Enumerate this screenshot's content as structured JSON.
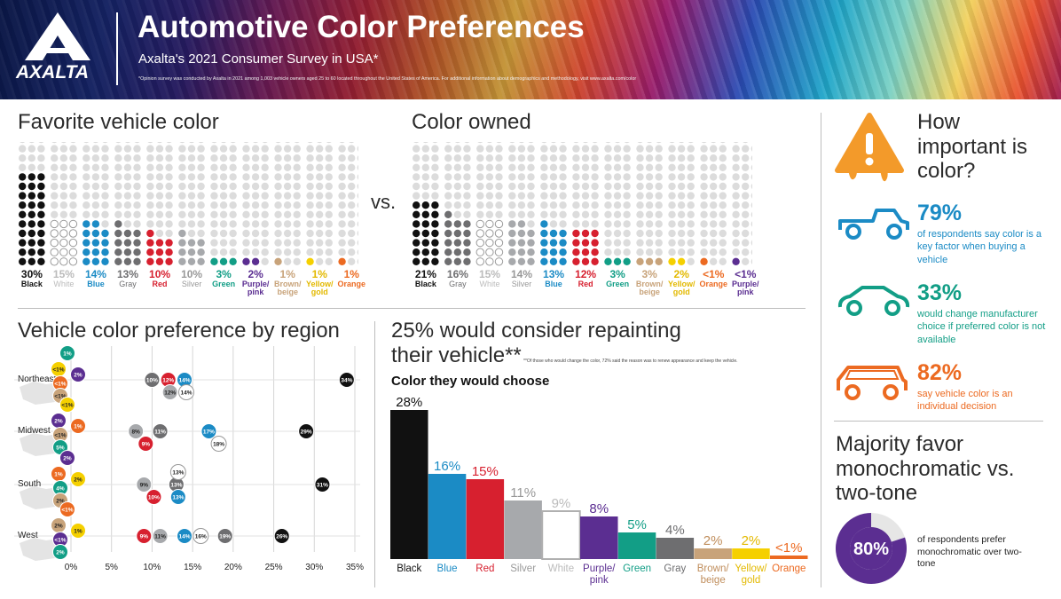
{
  "header": {
    "brand": "AXALTA",
    "title": "Automotive Color Preferences",
    "subtitle": "Axalta's 2021 Consumer Survey in USA*",
    "footnote": "*Opinion survey was conducted by Axalta in 2021 among 1,003 vehicle owners aged 25 to 60 located throughout the United States of America. For additional information about demographics and methodology, visit www.axalta.com/color"
  },
  "colors": {
    "Black": "#111111",
    "White": "#ffffff",
    "Blue": "#1b8bc5",
    "Gray": "#6e6e70",
    "Red": "#d7202f",
    "Silver": "#a7a9ac",
    "Green": "#129e86",
    "Purple": "#5b2e91",
    "Brown": "#c8a37a",
    "Yellow": "#f5d000",
    "Orange": "#ec6a21",
    "empty": "#dcdcdc"
  },
  "favorite": {
    "heading": "Favorite vehicle color",
    "items": [
      {
        "key": "Black",
        "label": "Black",
        "pct": "30%",
        "value": 30
      },
      {
        "key": "White",
        "label": "White",
        "pct": "15%",
        "value": 15
      },
      {
        "key": "Blue",
        "label": "Blue",
        "pct": "14%",
        "value": 14
      },
      {
        "key": "Gray",
        "label": "Gray",
        "pct": "13%",
        "value": 13
      },
      {
        "key": "Red",
        "label": "Red",
        "pct": "10%",
        "value": 10
      },
      {
        "key": "Silver",
        "label": "Silver",
        "pct": "10%",
        "value": 10
      },
      {
        "key": "Green",
        "label": "Green",
        "pct": "3%",
        "value": 3
      },
      {
        "key": "Purple",
        "label": "Purple/ pink",
        "pct": "2%",
        "value": 2
      },
      {
        "key": "Brown",
        "label": "Brown/ beige",
        "pct": "1%",
        "value": 1
      },
      {
        "key": "Yellow",
        "label": "Yellow/ gold",
        "pct": "1%",
        "value": 1
      },
      {
        "key": "Orange",
        "label": "Orange",
        "pct": "1%",
        "value": 1
      }
    ]
  },
  "vs": "vs.",
  "owned": {
    "heading": "Color owned",
    "items": [
      {
        "key": "Black",
        "label": "Black",
        "pct": "21%",
        "value": 21
      },
      {
        "key": "Gray",
        "label": "Gray",
        "pct": "16%",
        "value": 16
      },
      {
        "key": "White",
        "label": "White",
        "pct": "15%",
        "value": 15
      },
      {
        "key": "Silver",
        "label": "Silver",
        "pct": "14%",
        "value": 14
      },
      {
        "key": "Blue",
        "label": "Blue",
        "pct": "13%",
        "value": 13
      },
      {
        "key": "Red",
        "label": "Red",
        "pct": "12%",
        "value": 12
      },
      {
        "key": "Green",
        "label": "Green",
        "pct": "3%",
        "value": 3
      },
      {
        "key": "Brown",
        "label": "Brown/ beige",
        "pct": "3%",
        "value": 3
      },
      {
        "key": "Yellow",
        "label": "Yellow/ gold",
        "pct": "2%",
        "value": 2
      },
      {
        "key": "Orange",
        "label": "Orange",
        "pct": "<1%",
        "value": 0.5
      },
      {
        "key": "Purple",
        "label": "Purple/ pink",
        "pct": "<1%",
        "value": 0.5
      }
    ]
  },
  "importance": {
    "heading": "How important is color?",
    "stats": [
      {
        "pct": "79%",
        "desc": "of respondents say color is a key factor when buying a vehicle",
        "color": "#1b8bc5",
        "icon": "pickup-truck-icon"
      },
      {
        "pct": "33%",
        "desc": "would change manufacturer choice if preferred color is not available",
        "color": "#129e86",
        "icon": "sports-car-icon"
      },
      {
        "pct": "82%",
        "desc": "say vehicle color is an individual decision",
        "color": "#ec6a21",
        "icon": "suv-icon"
      }
    ]
  },
  "mono": {
    "heading": "Majority favor monochromatic vs. two-tone",
    "pct": "80%",
    "value": 80,
    "desc": "of respondents prefer monochromatic over two-tone",
    "color": "#5b2e91"
  },
  "chart_data": [
    {
      "type": "scatter",
      "title": "Vehicle color preference by region",
      "xlim": [
        0,
        35
      ],
      "x_ticks": [
        "0%",
        "5%",
        "10%",
        "15%",
        "20%",
        "25%",
        "30%",
        "35%"
      ],
      "regions": [
        {
          "name": "Northeast",
          "points": [
            {
              "color": "Green",
              "value": 1,
              "label": "1%"
            },
            {
              "color": "Yellow",
              "value": 0.5,
              "label": "<1%"
            },
            {
              "color": "Purple",
              "value": 2,
              "label": "2%"
            },
            {
              "color": "Orange",
              "value": 0.5,
              "label": "<1%"
            },
            {
              "color": "Brown",
              "value": 0.5,
              "label": "<1%"
            },
            {
              "color": "Gray",
              "value": 10,
              "label": "10%"
            },
            {
              "color": "Red",
              "value": 12,
              "label": "12%"
            },
            {
              "color": "Blue",
              "value": 14,
              "label": "14%"
            },
            {
              "color": "Silver",
              "value": 12,
              "label": "12%"
            },
            {
              "color": "White",
              "value": 14,
              "label": "14%"
            },
            {
              "color": "Black",
              "value": 34,
              "label": "34%"
            }
          ]
        },
        {
          "name": "Midwest",
          "points": [
            {
              "color": "Yellow",
              "value": 0.5,
              "label": "<1%"
            },
            {
              "color": "Purple",
              "value": 2,
              "label": "2%"
            },
            {
              "color": "Orange",
              "value": 1,
              "label": "1%"
            },
            {
              "color": "Brown",
              "value": 0.5,
              "label": "<1%"
            },
            {
              "color": "Green",
              "value": 5,
              "label": "5%"
            },
            {
              "color": "Silver",
              "value": 8,
              "label": "8%"
            },
            {
              "color": "Red",
              "value": 9,
              "label": "9%"
            },
            {
              "color": "Gray",
              "value": 11,
              "label": "11%"
            },
            {
              "color": "Blue",
              "value": 17,
              "label": "17%"
            },
            {
              "color": "White",
              "value": 18,
              "label": "18%"
            },
            {
              "color": "Black",
              "value": 29,
              "label": "29%"
            }
          ]
        },
        {
          "name": "South",
          "points": [
            {
              "color": "Purple",
              "value": 2,
              "label": "2%"
            },
            {
              "color": "Orange",
              "value": 1,
              "label": "1%"
            },
            {
              "color": "Yellow",
              "value": 2,
              "label": "2%"
            },
            {
              "color": "Green",
              "value": 4,
              "label": "4%"
            },
            {
              "color": "Brown",
              "value": 2,
              "label": "2%"
            },
            {
              "color": "Silver",
              "value": 9,
              "label": "9%"
            },
            {
              "color": "Red",
              "value": 10,
              "label": "10%"
            },
            {
              "color": "Gray",
              "value": 13,
              "label": "13%"
            },
            {
              "color": "Blue",
              "value": 13,
              "label": "13%"
            },
            {
              "color": "White",
              "value": 13,
              "label": "13%"
            },
            {
              "color": "Black",
              "value": 31,
              "label": "31%"
            }
          ]
        },
        {
          "name": "West",
          "points": [
            {
              "color": "Orange",
              "value": 0.5,
              "label": "<1%"
            },
            {
              "color": "Brown",
              "value": 2,
              "label": "2%"
            },
            {
              "color": "Yellow",
              "value": 1,
              "label": "1%"
            },
            {
              "color": "Purple",
              "value": 0.5,
              "label": "<1%"
            },
            {
              "color": "Green",
              "value": 2,
              "label": "2%"
            },
            {
              "color": "Red",
              "value": 9,
              "label": "9%"
            },
            {
              "color": "Silver",
              "value": 11,
              "label": "11%"
            },
            {
              "color": "Blue",
              "value": 14,
              "label": "14%"
            },
            {
              "color": "White",
              "value": 16,
              "label": "16%"
            },
            {
              "color": "Gray",
              "value": 19,
              "label": "19%"
            },
            {
              "color": "Black",
              "value": 26,
              "label": "26%"
            }
          ]
        }
      ]
    },
    {
      "type": "bar",
      "title": "25% would consider repainting their vehicle**",
      "note": "**Of those who would change the color, 72% said the reason was to renew appearance and keep the vehicle.",
      "subtitle": "Color they would choose",
      "ylim": [
        0,
        28
      ],
      "categories": [
        "Black",
        "Blue",
        "Red",
        "Silver",
        "White",
        "Purple/ pink",
        "Green",
        "Gray",
        "Brown/ beige",
        "Yellow/ gold",
        "Orange"
      ],
      "keys": [
        "Black",
        "Blue",
        "Red",
        "Silver",
        "White",
        "Purple",
        "Green",
        "Gray",
        "Brown",
        "Yellow",
        "Orange"
      ],
      "values": [
        28,
        16,
        15,
        11,
        9,
        8,
        5,
        4,
        2,
        2,
        0.5
      ],
      "labels": [
        "28%",
        "16%",
        "15%",
        "11%",
        "9%",
        "8%",
        "5%",
        "4%",
        "2%",
        "2%",
        "<1%"
      ]
    }
  ]
}
